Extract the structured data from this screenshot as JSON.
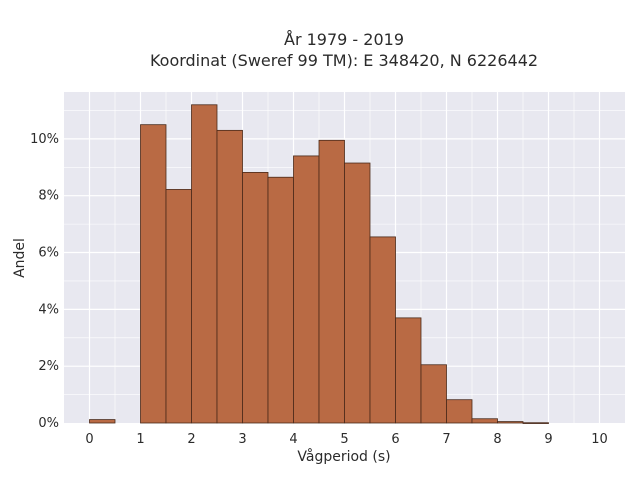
{
  "chart_data": {
    "type": "bar",
    "title_line1": "År 1979 - 2019",
    "title_line2": "Koordinat (Sweref 99 TM): E 348420, N 6226442",
    "xlabel": "Vågperiod (s)",
    "ylabel": "Andel",
    "xlim": [
      -0.5,
      10.5
    ],
    "ylim": [
      0,
      11.65
    ],
    "grid": true,
    "bin_width": 0.5,
    "bins": [
      {
        "x0": 0.0,
        "value": 0.12
      },
      {
        "x0": 0.5,
        "value": 0.0
      },
      {
        "x0": 1.0,
        "value": 10.5
      },
      {
        "x0": 1.5,
        "value": 8.22
      },
      {
        "x0": 2.0,
        "value": 11.2
      },
      {
        "x0": 2.5,
        "value": 10.3
      },
      {
        "x0": 3.0,
        "value": 8.82
      },
      {
        "x0": 3.5,
        "value": 8.65
      },
      {
        "x0": 4.0,
        "value": 9.4
      },
      {
        "x0": 4.5,
        "value": 9.95
      },
      {
        "x0": 5.0,
        "value": 9.15
      },
      {
        "x0": 5.5,
        "value": 6.55
      },
      {
        "x0": 6.0,
        "value": 3.7
      },
      {
        "x0": 6.5,
        "value": 2.05
      },
      {
        "x0": 7.0,
        "value": 0.82
      },
      {
        "x0": 7.5,
        "value": 0.15
      },
      {
        "x0": 8.0,
        "value": 0.05
      },
      {
        "x0": 8.5,
        "value": 0.01
      }
    ],
    "x_ticks": [
      "0",
      "1",
      "2",
      "3",
      "4",
      "5",
      "6",
      "7",
      "8",
      "9",
      "10"
    ],
    "y_ticks": [
      {
        "value": 0,
        "label": "0%"
      },
      {
        "value": 2,
        "label": "2%"
      },
      {
        "value": 4,
        "label": "4%"
      },
      {
        "value": 6,
        "label": "6%"
      },
      {
        "value": 8,
        "label": "8%"
      },
      {
        "value": 10,
        "label": "10%"
      }
    ],
    "colors": {
      "bar_fill": "#b96a44",
      "bar_stroke": "#4a2a1a",
      "plot_bg": "#e8e8f0",
      "grid": "#ffffff"
    }
  }
}
